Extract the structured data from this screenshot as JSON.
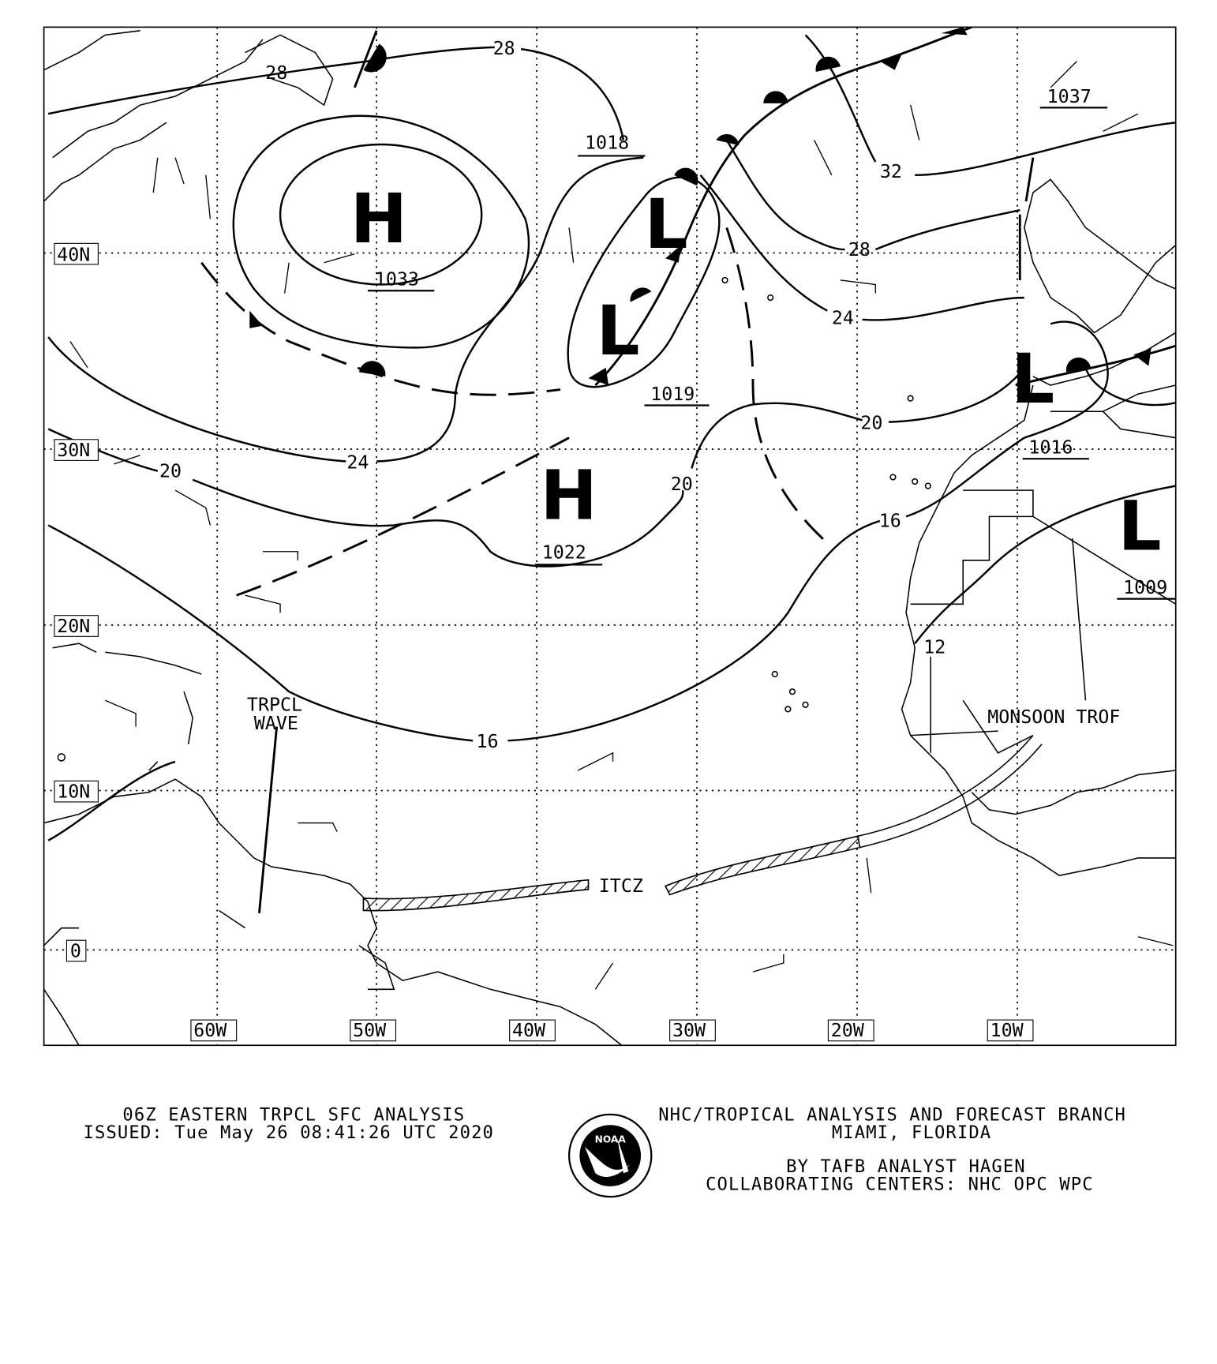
{
  "chart_title": "06Z EASTERN TRPCL SFC ANALYSIS",
  "issued": "ISSUED: Tue May 26 08:41:26 UTC 2020",
  "agency": "NHC/TROPICAL ANALYSIS AND FORECAST BRANCH",
  "location": "MIAMI,  FLORIDA",
  "analyst": "BY TAFB ANALYST  HAGEN",
  "collaborating": "COLLABORATING CENTERS: NHC OPC WPC",
  "logo_text": "NOAA",
  "grid_labels": {
    "lat": [
      "40N",
      "30N",
      "20N",
      "10N",
      "0"
    ],
    "lon": [
      "60W",
      "50W",
      "40W",
      "30W",
      "20W",
      "10W"
    ]
  },
  "pressure_centers": [
    {
      "type": "H",
      "value": "1033"
    },
    {
      "type": "H",
      "value": "1022"
    },
    {
      "type": "L",
      "value": "1018"
    },
    {
      "type": "L",
      "value": "1019"
    },
    {
      "type": "H",
      "value": "1037"
    },
    {
      "type": "L",
      "value": "1016"
    },
    {
      "type": "L",
      "value": "1009"
    }
  ],
  "isobar_labels": [
    "28",
    "24",
    "24",
    "20",
    "20",
    "16",
    "32",
    "28",
    "24",
    "20",
    "16",
    "12",
    "16"
  ],
  "features": {
    "tropical_wave": [
      "TRPCL",
      "WAVE"
    ],
    "itcz": "ITCZ",
    "monsoon": "MONSOON TROF"
  }
}
